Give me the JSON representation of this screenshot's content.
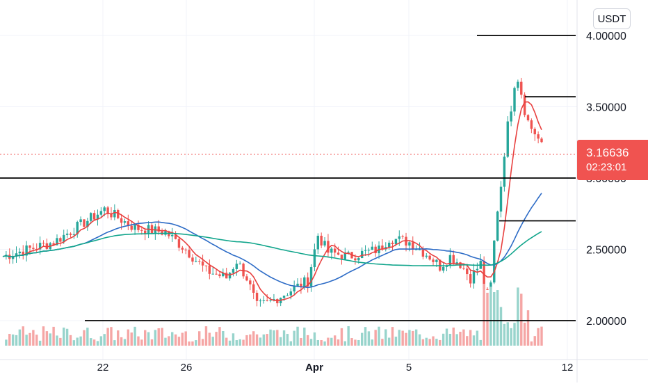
{
  "currency": "USDT",
  "price_tag": {
    "price": "3.16636",
    "countdown": "02:23:01"
  },
  "colors": {
    "up": "#26a69a",
    "down": "#ef5350",
    "up_volume": "#98d4cc",
    "down_volume": "#f5a6a5",
    "ma_fast": "#e8403f",
    "ma_mid": "#2c6bc6",
    "ma_slow": "#11a58c",
    "level_line": "#000000",
    "grid": "#f0f3fa",
    "axis_text": "#131722",
    "price_line": "#f05350"
  },
  "chart_data": {
    "type": "candlestick",
    "symbol_currency": "USDT",
    "last_price": 3.16636,
    "y_axis": {
      "range": [
        1.8,
        4.2
      ],
      "ticks": [
        "2.00000",
        "2.50000",
        "3.00000",
        "3.50000",
        "4.00000"
      ]
    },
    "x_axis": {
      "ticks": [
        "22",
        "26",
        "Apr",
        "5",
        "12"
      ]
    },
    "grid": true,
    "horizontal_levels": [
      4.0,
      3.57,
      3.0,
      2.7,
      2.0
    ],
    "price_points": [
      {
        "x": 0,
        "close": 2.45
      },
      {
        "x": 5,
        "close": 2.55
      },
      {
        "x": 10,
        "close": 2.78
      },
      {
        "x": 13,
        "close": 2.65
      },
      {
        "x": 16,
        "close": 2.62
      },
      {
        "x": 18,
        "close": 2.5
      },
      {
        "x": 20,
        "close": 2.35
      },
      {
        "x": 22,
        "close": 2.3
      },
      {
        "x": 23,
        "close": 2.42
      },
      {
        "x": 24,
        "close": 2.3
      },
      {
        "x": 25,
        "close": 2.1
      },
      {
        "x": 26,
        "close": 2.12
      },
      {
        "x": 28,
        "close": 2.2
      },
      {
        "x": 30,
        "close": 2.28
      },
      {
        "x": 31,
        "close": 2.6
      },
      {
        "x": 32,
        "close": 2.48
      },
      {
        "x": 34,
        "close": 2.45
      },
      {
        "x": 37,
        "close": 2.5
      },
      {
        "x": 38,
        "close": 2.58
      },
      {
        "x": 40,
        "close": 2.55
      },
      {
        "x": 42,
        "close": 2.45
      },
      {
        "x": 43,
        "close": 2.38
      },
      {
        "x": 44,
        "close": 2.45
      },
      {
        "x": 45,
        "close": 2.4
      },
      {
        "x": 46,
        "close": 2.3
      },
      {
        "x": 47,
        "close": 2.4
      },
      {
        "x": 47.5,
        "close": 2.15
      },
      {
        "x": 48,
        "close": 2.25
      },
      {
        "x": 48.5,
        "close": 2.7
      },
      {
        "x": 49,
        "close": 2.95
      },
      {
        "x": 49.5,
        "close": 3.3
      },
      {
        "x": 50,
        "close": 3.5
      },
      {
        "x": 50.5,
        "close": 3.75
      },
      {
        "x": 51,
        "close": 3.6
      },
      {
        "x": 51.5,
        "close": 3.42
      },
      {
        "x": 52,
        "close": 3.35
      },
      {
        "x": 52.5,
        "close": 3.3
      },
      {
        "x": 53,
        "close": 3.22
      },
      {
        "x": 53.5,
        "close": 3.17
      }
    ]
  }
}
